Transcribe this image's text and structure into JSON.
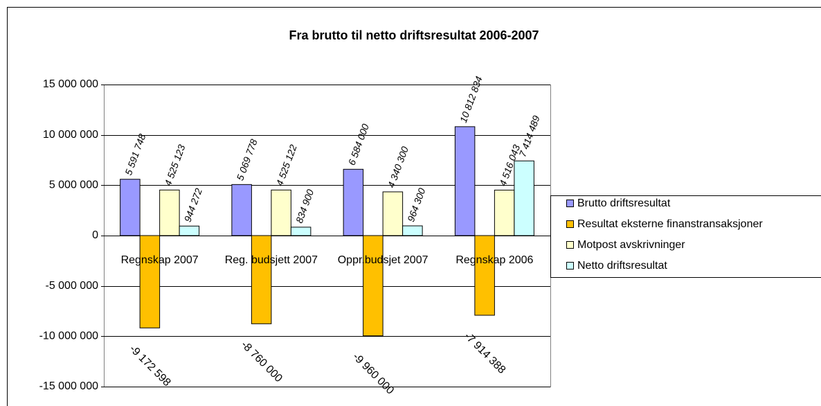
{
  "chart_data": {
    "type": "bar",
    "title": "Fra brutto til netto driftsresultat 2006-2007",
    "categories": [
      "Regnskap 2007",
      "Reg. budsjett 2007",
      "Oppr.budsjet 2007",
      "Regnskap 2006"
    ],
    "series": [
      {
        "name": "Brutto driftsresultat",
        "color": "#9999ff",
        "values": [
          5591748,
          5069778,
          6584000,
          10812834
        ],
        "value_labels": [
          "5 591 748",
          "5 069 778",
          "6 584 000",
          "10 812 834"
        ]
      },
      {
        "name": "Resultat eksterne finanstransaksjoner",
        "color": "#ffc000",
        "values": [
          -9172598,
          -8760000,
          -9960000,
          -7914388
        ],
        "value_labels": [
          "-9 172 598",
          "-8 760 000",
          "-9 960 000",
          "-7 914 388"
        ]
      },
      {
        "name": "Motpost avskrivninger",
        "color": "#ffffcc",
        "values": [
          4525123,
          4525122,
          4340300,
          4516043
        ],
        "value_labels": [
          "4 525 123",
          "4 525 122",
          "4 340 300",
          "4 516 043"
        ]
      },
      {
        "name": "Netto driftsresultat",
        "color": "#ccffff",
        "values": [
          944272,
          834900,
          964300,
          7414489
        ],
        "value_labels": [
          "944 272",
          "834 900",
          "964 300",
          "7 414 489"
        ]
      }
    ],
    "ylim": [
      -15000000,
      15000000
    ],
    "yticks": [
      {
        "value": -15000000,
        "label": "-15 000 000"
      },
      {
        "value": -10000000,
        "label": "-10 000 000"
      },
      {
        "value": -5000000,
        "label": "-5 000 000"
      },
      0,
      {
        "value": 5000000,
        "label": "5 000 000"
      },
      {
        "value": 10000000,
        "label": "10 000 000"
      },
      {
        "value": 15000000,
        "label": "15 000 000"
      }
    ],
    "grid": true,
    "legend": "right",
    "negative_color": "#ff0000"
  }
}
